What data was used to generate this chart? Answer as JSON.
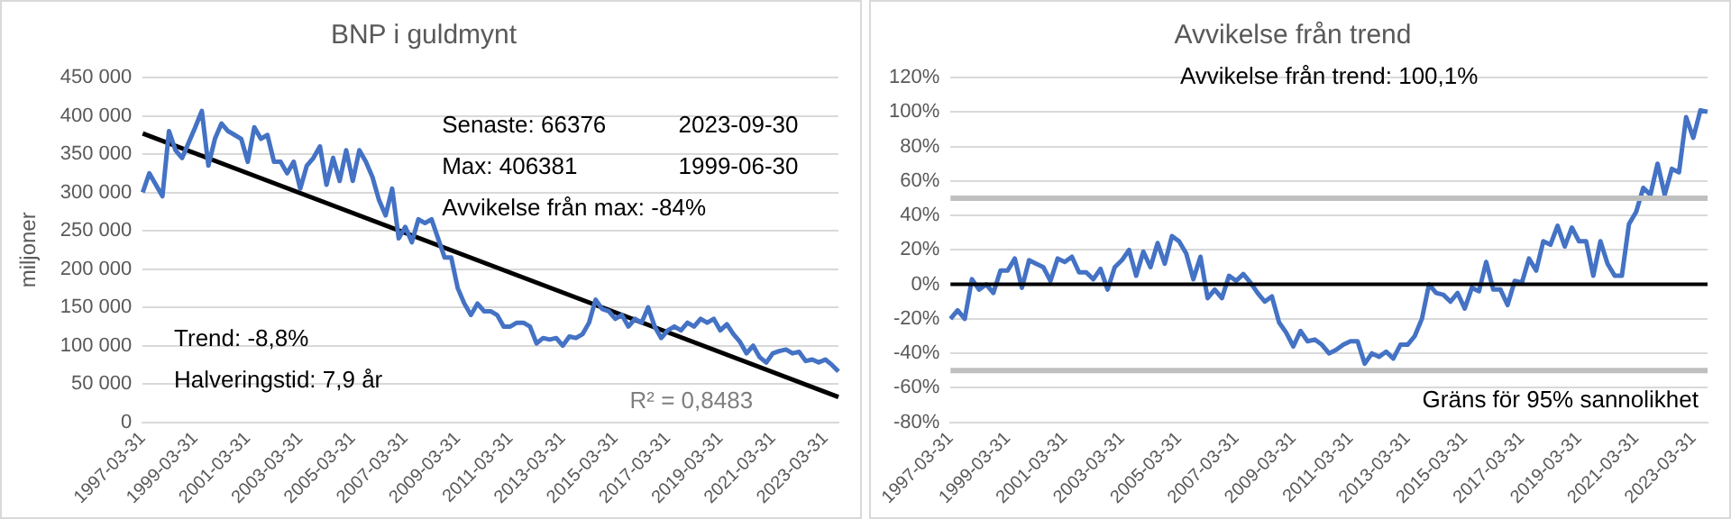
{
  "chart_data": [
    {
      "type": "line",
      "title": "BNP i guldmynt",
      "ylabel": "miljoner",
      "categories": [
        "1997-03-31",
        null,
        null,
        null,
        null,
        null,
        null,
        null,
        "1999-03-31",
        null,
        null,
        null,
        null,
        null,
        null,
        null,
        "2001-03-31",
        null,
        null,
        null,
        null,
        null,
        null,
        null,
        "2003-03-31",
        null,
        null,
        null,
        null,
        null,
        null,
        null,
        "2005-03-31",
        null,
        null,
        null,
        null,
        null,
        null,
        null,
        "2007-03-31",
        null,
        null,
        null,
        null,
        null,
        null,
        null,
        "2009-03-31",
        null,
        null,
        null,
        null,
        null,
        null,
        null,
        "2011-03-31",
        null,
        null,
        null,
        null,
        null,
        null,
        null,
        "2013-03-31",
        null,
        null,
        null,
        null,
        null,
        null,
        null,
        "2015-03-31",
        null,
        null,
        null,
        null,
        null,
        null,
        null,
        "2017-03-31",
        null,
        null,
        null,
        null,
        null,
        null,
        null,
        "2019-03-31",
        null,
        null,
        null,
        null,
        null,
        null,
        null,
        "2021-03-31",
        null,
        null,
        null,
        null,
        null,
        null,
        null,
        "2023-03-31",
        null,
        null
      ],
      "series": [
        {
          "color": "#4472c4",
          "values": [
            300000,
            325000,
            310000,
            295000,
            380000,
            355000,
            345000,
            365000,
            385000,
            406381,
            335000,
            370000,
            390000,
            380000,
            375000,
            370000,
            340000,
            385000,
            370000,
            375000,
            340000,
            340000,
            325000,
            340000,
            305000,
            335000,
            345000,
            360000,
            310000,
            345000,
            315000,
            355000,
            315000,
            355000,
            340000,
            320000,
            290000,
            270000,
            305000,
            240000,
            255000,
            235000,
            265000,
            260000,
            265000,
            240000,
            215000,
            215000,
            175000,
            155000,
            140000,
            155000,
            145000,
            145000,
            140000,
            125000,
            125000,
            130000,
            130000,
            125000,
            103000,
            110000,
            108000,
            110000,
            100000,
            112000,
            110000,
            115000,
            130000,
            160000,
            148000,
            145000,
            135000,
            140000,
            125000,
            135000,
            130000,
            150000,
            125000,
            110000,
            120000,
            125000,
            120000,
            130000,
            125000,
            135000,
            130000,
            135000,
            120000,
            128000,
            115000,
            105000,
            90000,
            100000,
            85000,
            78000,
            90000,
            93000,
            95000,
            90000,
            92000,
            80000,
            82000,
            78000,
            82000,
            75000,
            66376
          ]
        },
        {
          "type": "line",
          "color": "#000000",
          "values": [
            377000,
            null,
            null,
            null,
            null,
            null,
            null,
            null,
            null,
            null,
            null,
            null,
            null,
            null,
            null,
            null,
            null,
            null,
            null,
            null,
            null,
            null,
            null,
            null,
            null,
            null,
            null,
            null,
            null,
            null,
            null,
            null,
            null,
            null,
            null,
            null,
            null,
            null,
            null,
            null,
            null,
            null,
            null,
            null,
            null,
            null,
            null,
            null,
            null,
            null,
            null,
            null,
            null,
            null,
            null,
            null,
            null,
            null,
            null,
            null,
            null,
            null,
            null,
            null,
            null,
            null,
            null,
            null,
            null,
            null,
            null,
            null,
            null,
            null,
            null,
            null,
            null,
            null,
            null,
            null,
            null,
            null,
            null,
            null,
            null,
            null,
            null,
            null,
            null,
            null,
            null,
            null,
            null,
            null,
            null,
            null,
            null,
            null,
            null,
            null,
            null,
            null,
            null,
            null,
            null,
            null,
            33000
          ]
        }
      ],
      "ylim": [
        0,
        450000
      ],
      "yticks": [
        {
          "value": 0,
          "label": "0"
        },
        {
          "value": 50000,
          "label": "50 000"
        },
        {
          "value": 100000,
          "label": "100 000"
        },
        {
          "value": 150000,
          "label": "150 000"
        },
        {
          "value": 200000,
          "label": "200 000"
        },
        {
          "value": 250000,
          "label": "250 000"
        },
        {
          "value": 300000,
          "label": "300 000"
        },
        {
          "value": 350000,
          "label": "350 000"
        },
        {
          "value": 400000,
          "label": "400 000"
        },
        {
          "value": 450000,
          "label": "450 000"
        }
      ],
      "grid": "y",
      "annotations": [
        "Senaste: 66376",
        "2023-09-30",
        "Max: 406381",
        "1999-06-30",
        "Avvikelse från max: -84%",
        "Trend: -8,8%",
        "Halveringstid: 7,9 år",
        "R² = 0,8483"
      ]
    },
    {
      "type": "line",
      "title": "Avvikelse från trend",
      "categories": [
        "1997-03-31",
        null,
        null,
        null,
        null,
        null,
        null,
        null,
        "1999-03-31",
        null,
        null,
        null,
        null,
        null,
        null,
        null,
        "2001-03-31",
        null,
        null,
        null,
        null,
        null,
        null,
        null,
        "2003-03-31",
        null,
        null,
        null,
        null,
        null,
        null,
        null,
        "2005-03-31",
        null,
        null,
        null,
        null,
        null,
        null,
        null,
        "2007-03-31",
        null,
        null,
        null,
        null,
        null,
        null,
        null,
        "2009-03-31",
        null,
        null,
        null,
        null,
        null,
        null,
        null,
        "2011-03-31",
        null,
        null,
        null,
        null,
        null,
        null,
        null,
        "2013-03-31",
        null,
        null,
        null,
        null,
        null,
        null,
        null,
        "2015-03-31",
        null,
        null,
        null,
        null,
        null,
        null,
        null,
        "2017-03-31",
        null,
        null,
        null,
        null,
        null,
        null,
        null,
        "2019-03-31",
        null,
        null,
        null,
        null,
        null,
        null,
        null,
        "2021-03-31",
        null,
        null,
        null,
        null,
        null,
        null,
        null,
        "2023-03-31",
        null,
        null
      ],
      "series": [
        {
          "color": "#4472c4",
          "values": [
            -20,
            -15,
            -20,
            3,
            -3,
            0,
            -5,
            8,
            8,
            15,
            -2,
            14,
            12,
            10,
            2,
            15,
            13,
            16,
            7,
            7,
            3,
            9,
            -3,
            10,
            14,
            20,
            5,
            19,
            10,
            24,
            12,
            28,
            25,
            18,
            3,
            16,
            -8,
            -3,
            -8,
            5,
            2,
            6,
            1,
            -5,
            -10,
            -7,
            -22,
            -28,
            -36,
            -27,
            -33,
            -32,
            -35,
            -40,
            -38,
            -35,
            -33,
            -33,
            -46,
            -40,
            -42,
            -39,
            -43,
            -35,
            -35,
            -30,
            -20,
            0,
            -5,
            -6,
            -10,
            -5,
            -14,
            -2,
            -4,
            13,
            -3,
            -3,
            -12,
            2,
            1,
            15,
            8,
            25,
            23,
            34,
            22,
            33,
            25,
            25,
            5,
            25,
            12,
            5,
            5,
            35,
            42,
            56,
            52,
            70,
            52,
            67,
            65,
            97,
            85,
            101,
            100.1
          ]
        }
      ],
      "ylim": [
        -80,
        120
      ],
      "yticks": [
        {
          "value": -80,
          "label": "-80%"
        },
        {
          "value": -60,
          "label": "-60%"
        },
        {
          "value": -40,
          "label": "-40%"
        },
        {
          "value": -20,
          "label": "-20%"
        },
        {
          "value": 0,
          "label": "0%"
        },
        {
          "value": 20,
          "label": "20%"
        },
        {
          "value": 40,
          "label": "40%"
        },
        {
          "value": 60,
          "label": "60%"
        },
        {
          "value": 80,
          "label": "80%"
        },
        {
          "value": 100,
          "label": "100%"
        },
        {
          "value": 120,
          "label": "120%"
        }
      ],
      "grid": "y",
      "ref_lines": [
        {
          "axis": "y",
          "value": 0,
          "color": "#000000"
        },
        {
          "axis": "y",
          "value": 50,
          "color": "#bfbfbf"
        },
        {
          "axis": "y",
          "value": -50,
          "color": "#bfbfbf",
          "label": "Gräns för 95% sannolikhet"
        }
      ],
      "annotations": [
        "Avvikelse från trend: 100,1%"
      ]
    }
  ]
}
